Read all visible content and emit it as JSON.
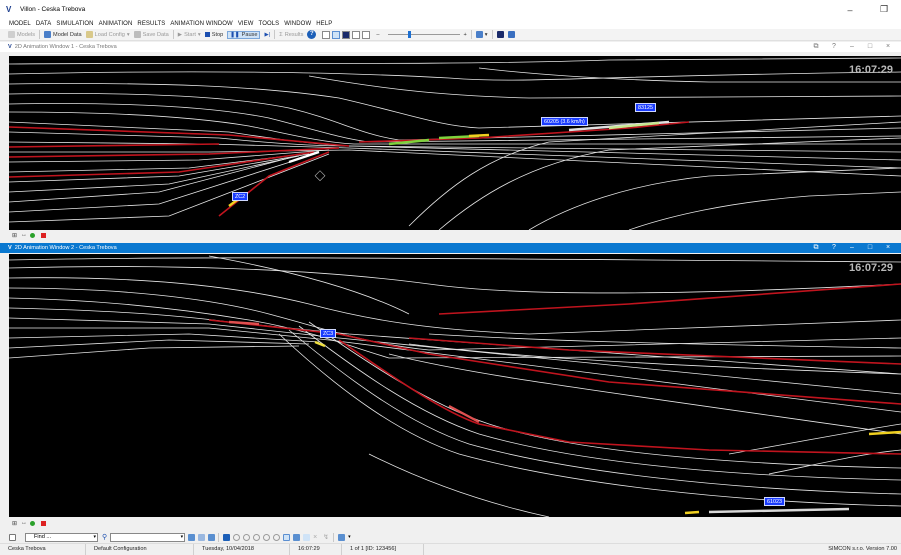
{
  "window": {
    "title": "Villon - Ceska Trebova",
    "logo": "V",
    "controls": [
      "–",
      "❐"
    ]
  },
  "menu": [
    "MODEL",
    "DATA",
    "SIMULATION",
    "ANIMATION",
    "RESULTS",
    "ANIMATION WINDOW",
    "VIEW",
    "TOOLS",
    "WINDOW",
    "HELP"
  ],
  "toolbar": {
    "models": "Models",
    "model_data": "Model Data",
    "load_config": "Load Config",
    "save_data": "Save Data",
    "start": "Start",
    "stop": "Stop",
    "pause": "Pause",
    "results": "Results",
    "zoom_minus": "–",
    "zoom_plus": "+",
    "zoom_level": 0.3
  },
  "anim1": {
    "title": "2D Animation Window 1 - Ceska Trebova",
    "clock": "16:07:29",
    "tags": [
      "60205 (3.6 km/h)",
      "83125",
      "ZC2"
    ]
  },
  "anim2": {
    "title": "2D Animation Window 2 - Ceska Trebova",
    "clock": "16:07:29",
    "tags": [
      "ZC3",
      "61023"
    ]
  },
  "find": {
    "label": "Find ..."
  },
  "status": {
    "station": "Ceska Trebova",
    "config": "Default Configuration",
    "date": "Tuesday, 10/04/2018",
    "time": "16:07:29",
    "record": "1 of 1 [ID: 123456]",
    "version": "SIMCON s.r.o.  Version 7.00"
  },
  "colors": {
    "accent": "#0a78d0",
    "tag_bg": "#1a3cff",
    "track": "#e8e8e8",
    "occupied": "#c0141e"
  }
}
